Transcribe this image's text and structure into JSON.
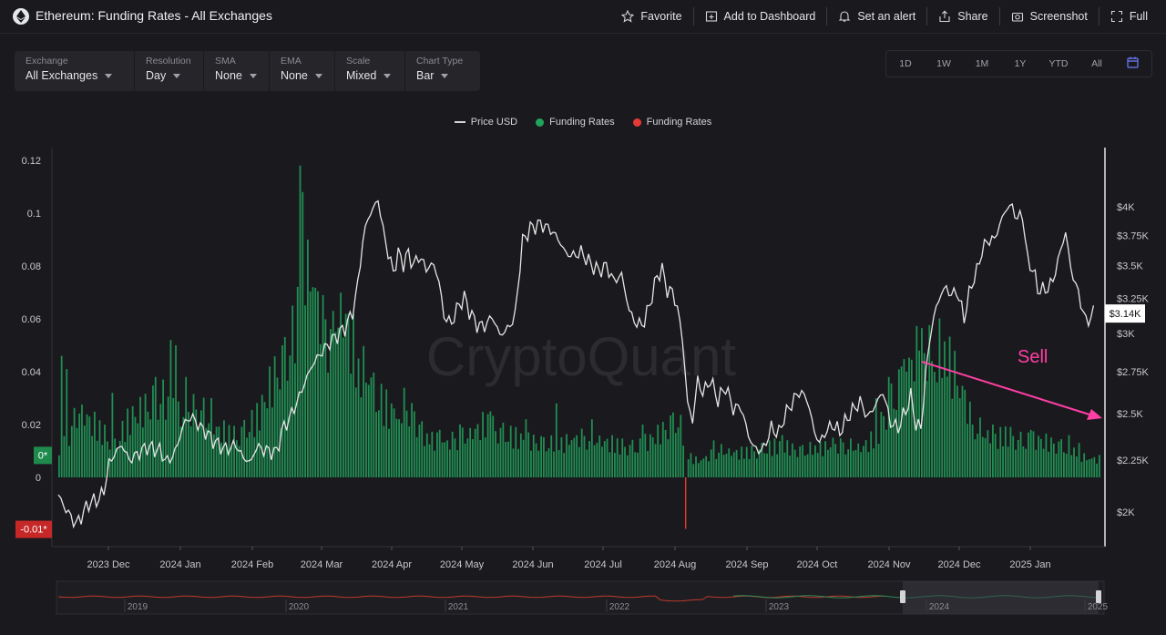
{
  "header": {
    "title": "Ethereum: Funding Rates - All Exchanges",
    "actions": [
      {
        "label": "Favorite",
        "icon": "star-icon"
      },
      {
        "label": "Add to Dashboard",
        "icon": "dashboard-add-icon"
      },
      {
        "label": "Set an alert",
        "icon": "bell-icon"
      },
      {
        "label": "Share",
        "icon": "share-icon"
      },
      {
        "label": "Screenshot",
        "icon": "camera-icon"
      },
      {
        "label": "Full",
        "icon": "fullscreen-icon"
      }
    ]
  },
  "controls": [
    {
      "label": "Exchange",
      "value": "All Exchanges"
    },
    {
      "label": "Resolution",
      "value": "Day"
    },
    {
      "label": "SMA",
      "value": "None"
    },
    {
      "label": "EMA",
      "value": "None"
    },
    {
      "label": "Scale",
      "value": "Mixed"
    },
    {
      "label": "Chart Type",
      "value": "Bar"
    }
  ],
  "ranges": [
    "1D",
    "1W",
    "1M",
    "1Y",
    "YTD",
    "All"
  ],
  "calendar_icon": "calendar-icon",
  "legend": [
    {
      "label": "Price USD",
      "kind": "line",
      "color": "#d4d4d8"
    },
    {
      "label": "Funding Rates",
      "kind": "dot",
      "color": "#22a45d"
    },
    {
      "label": "Funding Rates",
      "kind": "dot",
      "color": "#e53935"
    }
  ],
  "watermark": "CryptoQuant",
  "annotation": {
    "label": "Sell",
    "color": "#ff3fa4"
  },
  "chart_data": {
    "type": "bar",
    "x_ticks": [
      "2023 Dec",
      "2024 Jan",
      "2024 Feb",
      "2024 Mar",
      "2024 Apr",
      "2024 May",
      "2024 Jun",
      "2024 Jul",
      "2024 Aug",
      "2024 Sep",
      "2024 Oct",
      "2024 Nov",
      "2024 Dec",
      "2025 Jan"
    ],
    "left_axis": {
      "ticks": [
        "0.12",
        "0.1",
        "0.08",
        "0.06",
        "0.04",
        "0.02",
        "0"
      ],
      "range": [
        -0.02,
        0.12
      ]
    },
    "right_axis": {
      "ticks": [
        "$4K",
        "$3.75K",
        "$3.5K",
        "$3.25K",
        "$3K",
        "$2.75K",
        "$2.5K",
        "$2.25K",
        "$2K"
      ],
      "scale": "log",
      "range": [
        1900,
        4000
      ]
    },
    "left_badges": [
      {
        "label": "0*",
        "color": "#1f8a4c",
        "value": 0.0085
      },
      {
        "label": "-0.01*",
        "color": "#c62828",
        "value": -0.0195
      }
    ],
    "right_badge": {
      "label": "$3.14K",
      "value": 3140
    },
    "series": [
      {
        "name": "Funding Rates",
        "color_positive": "#22a45d",
        "color_negative": "#e53935",
        "anchors": [
          [
            0,
            0.008
          ],
          [
            8,
            0.025
          ],
          [
            22,
            0.012
          ],
          [
            28,
            0.022
          ],
          [
            40,
            0.03
          ],
          [
            48,
            0.022
          ],
          [
            55,
            0.026
          ],
          [
            62,
            0.018
          ],
          [
            70,
            0.015
          ],
          [
            78,
            0.022
          ],
          [
            86,
            0.04
          ],
          [
            93,
            0.055
          ],
          [
            97,
            0.09
          ],
          [
            101,
            0.07
          ],
          [
            106,
            0.055
          ],
          [
            112,
            0.062
          ],
          [
            117,
            0.045
          ],
          [
            125,
            0.03
          ],
          [
            130,
            0.025
          ],
          [
            136,
            0.028
          ],
          [
            144,
            0.015
          ],
          [
            152,
            0.013
          ],
          [
            160,
            0.015
          ],
          [
            168,
            0.02
          ],
          [
            176,
            0.016
          ],
          [
            183,
            0.014
          ],
          [
            190,
            0.013
          ],
          [
            197,
            0.012
          ],
          [
            204,
            0.015
          ],
          [
            212,
            0.014
          ],
          [
            220,
            0.012
          ],
          [
            228,
            0.011
          ],
          [
            236,
            0.016
          ],
          [
            244,
            0.022
          ],
          [
            248,
            0.008
          ],
          [
            252,
            0.006
          ],
          [
            260,
            0.01
          ],
          [
            268,
            0.009
          ],
          [
            276,
            0.01
          ],
          [
            284,
            0.012
          ],
          [
            292,
            0.01
          ],
          [
            300,
            0.011
          ],
          [
            308,
            0.012
          ],
          [
            316,
            0.011
          ],
          [
            322,
            0.015
          ],
          [
            326,
            0.025
          ],
          [
            333,
            0.035
          ],
          [
            337,
            0.045
          ],
          [
            343,
            0.05
          ],
          [
            350,
            0.045
          ],
          [
            356,
            0.034
          ],
          [
            360,
            0.02
          ],
          [
            368,
            0.014
          ],
          [
            374,
            0.016
          ],
          [
            380,
            0.013
          ],
          [
            386,
            0.014
          ],
          [
            394,
            0.012
          ],
          [
            400,
            0.01
          ],
          [
            405,
            0.007
          ]
        ],
        "spikes": [
          [
            1,
            0.046
          ],
          [
            3,
            0.041
          ],
          [
            21,
            0.032
          ],
          [
            38,
            0.038
          ],
          [
            44,
            0.052
          ],
          [
            46,
            0.05
          ],
          [
            50,
            0.038
          ],
          [
            60,
            0.03
          ],
          [
            83,
            0.042
          ],
          [
            88,
            0.05
          ],
          [
            92,
            0.065
          ],
          [
            95,
            0.118
          ],
          [
            96,
            0.108
          ],
          [
            98,
            0.09
          ],
          [
            100,
            0.072
          ],
          [
            104,
            0.069
          ],
          [
            108,
            0.063
          ],
          [
            109,
            0.055
          ],
          [
            114,
            0.062
          ],
          [
            118,
            0.045
          ],
          [
            122,
            0.035
          ],
          [
            131,
            0.028
          ],
          [
            134,
            0.022
          ],
          [
            142,
            0.02
          ],
          [
            150,
            0.018
          ],
          [
            158,
            0.02
          ],
          [
            170,
            0.025
          ],
          [
            184,
            0.022
          ],
          [
            196,
            0.028
          ],
          [
            210,
            0.022
          ],
          [
            230,
            0.02
          ],
          [
            246,
            0.012
          ],
          [
            258,
            0.014
          ],
          [
            285,
            0.016
          ],
          [
            305,
            0.015
          ],
          [
            322,
            0.03
          ],
          [
            327,
            0.038
          ],
          [
            332,
            0.042
          ],
          [
            334,
            0.04
          ],
          [
            339,
            0.048
          ],
          [
            341,
            0.047
          ],
          [
            344,
            0.044
          ],
          [
            346,
            0.036
          ],
          [
            355,
            0.03
          ],
          [
            360,
            0.02
          ],
          [
            368,
            0.02
          ],
          [
            383,
            0.018
          ],
          [
            398,
            0.016
          ],
          [
            402,
            0.013
          ]
        ],
        "negative": [
          [
            247,
            -0.0195
          ]
        ]
      },
      {
        "name": "Price USD",
        "color": "#e5e5e5",
        "anchors": [
          [
            0,
            2080
          ],
          [
            2,
            2030
          ],
          [
            4,
            1995
          ],
          [
            7,
            1945
          ],
          [
            9,
            1980
          ],
          [
            12,
            2040
          ],
          [
            16,
            2060
          ],
          [
            18,
            2100
          ],
          [
            20,
            2230
          ],
          [
            22,
            2280
          ],
          [
            25,
            2330
          ],
          [
            28,
            2250
          ],
          [
            31,
            2280
          ],
          [
            35,
            2320
          ],
          [
            40,
            2300
          ],
          [
            43,
            2240
          ],
          [
            46,
            2290
          ],
          [
            48,
            2380
          ],
          [
            50,
            2460
          ],
          [
            53,
            2480
          ],
          [
            55,
            2440
          ],
          [
            58,
            2400
          ],
          [
            62,
            2340
          ],
          [
            66,
            2305
          ],
          [
            70,
            2330
          ],
          [
            73,
            2260
          ],
          [
            76,
            2240
          ],
          [
            78,
            2320
          ],
          [
            82,
            2300
          ],
          [
            86,
            2290
          ],
          [
            88,
            2400
          ],
          [
            92,
            2500
          ],
          [
            95,
            2600
          ],
          [
            97,
            2680
          ],
          [
            100,
            2790
          ],
          [
            103,
            2860
          ],
          [
            107,
            2940
          ],
          [
            110,
            2990
          ],
          [
            113,
            3040
          ],
          [
            116,
            3150
          ],
          [
            118,
            3350
          ],
          [
            120,
            3700
          ],
          [
            122,
            3900
          ],
          [
            124,
            3980
          ],
          [
            126,
            4070
          ],
          [
            128,
            3800
          ],
          [
            130,
            3600
          ],
          [
            132,
            3450
          ],
          [
            134,
            3600
          ],
          [
            136,
            3520
          ],
          [
            138,
            3600
          ],
          [
            140,
            3500
          ],
          [
            142,
            3580
          ],
          [
            145,
            3480
          ],
          [
            148,
            3510
          ],
          [
            150,
            3380
          ],
          [
            152,
            3120
          ],
          [
            155,
            3070
          ],
          [
            157,
            3170
          ],
          [
            160,
            3260
          ],
          [
            162,
            3160
          ],
          [
            165,
            3060
          ],
          [
            168,
            3050
          ],
          [
            171,
            3120
          ],
          [
            174,
            2990
          ],
          [
            177,
            3030
          ],
          [
            180,
            3120
          ],
          [
            183,
            3700
          ],
          [
            186,
            3810
          ],
          [
            190,
            3850
          ],
          [
            194,
            3800
          ],
          [
            197,
            3720
          ],
          [
            200,
            3600
          ],
          [
            203,
            3580
          ],
          [
            206,
            3610
          ],
          [
            210,
            3510
          ],
          [
            213,
            3460
          ],
          [
            216,
            3500
          ],
          [
            219,
            3380
          ],
          [
            222,
            3430
          ],
          [
            225,
            3160
          ],
          [
            228,
            3060
          ],
          [
            231,
            3080
          ],
          [
            234,
            3270
          ],
          [
            236,
            3420
          ],
          [
            238,
            3470
          ],
          [
            240,
            3310
          ],
          [
            242,
            3300
          ],
          [
            244,
            3180
          ],
          [
            246,
            2960
          ],
          [
            248,
            2560
          ],
          [
            250,
            2460
          ],
          [
            252,
            2700
          ],
          [
            254,
            2620
          ],
          [
            257,
            2700
          ],
          [
            260,
            2580
          ],
          [
            263,
            2660
          ],
          [
            266,
            2530
          ],
          [
            269,
            2540
          ],
          [
            272,
            2380
          ],
          [
            274,
            2320
          ],
          [
            276,
            2300
          ],
          [
            278,
            2310
          ],
          [
            281,
            2420
          ],
          [
            284,
            2390
          ],
          [
            286,
            2480
          ],
          [
            289,
            2560
          ],
          [
            292,
            2630
          ],
          [
            295,
            2590
          ],
          [
            298,
            2400
          ],
          [
            300,
            2340
          ],
          [
            302,
            2390
          ],
          [
            305,
            2440
          ],
          [
            308,
            2400
          ],
          [
            312,
            2500
          ],
          [
            316,
            2570
          ],
          [
            319,
            2480
          ],
          [
            322,
            2550
          ],
          [
            325,
            2630
          ],
          [
            328,
            2450
          ],
          [
            331,
            2420
          ],
          [
            334,
            2520
          ],
          [
            336,
            2600
          ],
          [
            338,
            2440
          ],
          [
            340,
            2420
          ],
          [
            342,
            2750
          ],
          [
            344,
            3030
          ],
          [
            346,
            3180
          ],
          [
            348,
            3290
          ],
          [
            350,
            3330
          ],
          [
            352,
            3270
          ],
          [
            354,
            3310
          ],
          [
            357,
            3110
          ],
          [
            360,
            3360
          ],
          [
            362,
            3450
          ],
          [
            364,
            3620
          ],
          [
            366,
            3700
          ],
          [
            369,
            3720
          ],
          [
            372,
            3900
          ],
          [
            374,
            4000
          ],
          [
            376,
            4000
          ],
          [
            378,
            3890
          ],
          [
            380,
            3940
          ],
          [
            382,
            3540
          ],
          [
            384,
            3480
          ],
          [
            386,
            3320
          ],
          [
            389,
            3310
          ],
          [
            392,
            3380
          ],
          [
            395,
            3620
          ],
          [
            397,
            3780
          ],
          [
            399,
            3480
          ],
          [
            402,
            3290
          ],
          [
            405,
            3080
          ],
          [
            408,
            3140
          ]
        ]
      }
    ]
  },
  "overview": {
    "labels": [
      "2019",
      "2020",
      "2021",
      "2022",
      "2023",
      "2024",
      "2025"
    ]
  }
}
